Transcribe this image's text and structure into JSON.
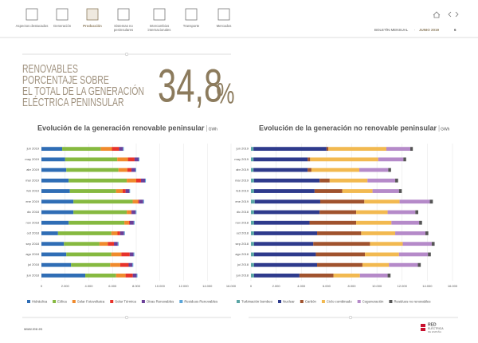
{
  "nav": [
    "Aspectos destacados",
    "Generación",
    "Producción",
    "Sistemas no peninsulares",
    "Intercambios internacionales",
    "Transporte",
    "Mercados"
  ],
  "header": {
    "bulletin": "BOLETÍN MENSUAL",
    "separator": "·",
    "period": "JUNIO 2019",
    "page": "6"
  },
  "headline": {
    "lines": [
      "RENOVABLES",
      "PORCENTAJE SOBRE",
      "EL TOTAL DE LA GENERACIÓN",
      "ELÉCTRICA PENINSULAR"
    ],
    "value": "34,8",
    "unit": "%"
  },
  "footer": {
    "url": "www.ree.es",
    "logo": [
      "RED",
      "ELÉCTRICA",
      "DE ESPAÑA"
    ]
  },
  "chart_data": [
    {
      "type": "bar",
      "orientation": "horizontal",
      "stacked": true,
      "grid": true,
      "title": "Evolución de la generación renovable peninsular",
      "unit": "GWh",
      "categories": [
        "jun 2019",
        "may 2019",
        "abr 2019",
        "mar 2019",
        "feb 2019",
        "ene 2019",
        "dic 2018",
        "nov 2018",
        "oct 2018",
        "sep 2018",
        "ago 2018",
        "jul 2018",
        "jun 2018"
      ],
      "xlim": [
        0,
        16000
      ],
      "xticks": [
        0,
        {
          "value": 2000,
          "label": "2.000"
        },
        {
          "value": 4000,
          "label": "4.000"
        },
        {
          "value": 6000,
          "label": "6.000"
        },
        {
          "value": 8000,
          "label": "8.000"
        },
        {
          "value": 10000,
          "label": "10.000"
        },
        {
          "value": 12000,
          "label": "12.000"
        },
        {
          "value": 14000,
          "label": "14.000"
        },
        {
          "value": 16000,
          "label": "16.000"
        }
      ],
      "series": [
        {
          "name": "Hidráulica",
          "color": "#2f6db5",
          "values": [
            1750,
            2000,
            2100,
            2300,
            2400,
            2700,
            2700,
            2300,
            1400,
            1900,
            2100,
            2500,
            3700
          ]
        },
        {
          "name": "Eólica",
          "color": "#86b940",
          "values": [
            3250,
            4400,
            4400,
            4900,
            3900,
            5000,
            4500,
            4700,
            4500,
            3000,
            3800,
            3300,
            2600
          ]
        },
        {
          "name": "Solar Fotovoltaica",
          "color": "#f08a2c",
          "values": [
            950,
            900,
            750,
            800,
            550,
            450,
            350,
            380,
            520,
            700,
            850,
            850,
            800
          ]
        },
        {
          "name": "Solar Térmica",
          "color": "#e8332a",
          "values": [
            600,
            560,
            350,
            400,
            250,
            100,
            60,
            80,
            220,
            520,
            700,
            710,
            610
          ]
        },
        {
          "name": "Otras Renovables",
          "color": "#6b3f98",
          "values": [
            330,
            340,
            330,
            340,
            320,
            340,
            340,
            330,
            330,
            320,
            320,
            320,
            320
          ]
        },
        {
          "name": "Residuos Renovables",
          "color": "#5aa5d8",
          "values": [
            70,
            70,
            70,
            70,
            60,
            70,
            70,
            70,
            70,
            70,
            70,
            70,
            70
          ]
        }
      ]
    },
    {
      "type": "bar",
      "orientation": "horizontal",
      "stacked": true,
      "grid": true,
      "title": "Evolución de la generación no renovable peninsular",
      "unit": "GWh",
      "categories": [
        "jun 2019",
        "may 2019",
        "abr 2019",
        "mar 2019",
        "feb 2019",
        "ene 2019",
        "dic 2018",
        "nov 2018",
        "oct 2018",
        "sep 2018",
        "ago 2018",
        "jul 2018",
        "jun 2018"
      ],
      "xlim": [
        0,
        16000
      ],
      "xticks": [
        0,
        {
          "value": 2000,
          "label": "2.000"
        },
        {
          "value": 4000,
          "label": "4.000"
        },
        {
          "value": 6000,
          "label": "6.000"
        },
        {
          "value": 8000,
          "label": "8.000"
        },
        {
          "value": 10000,
          "label": "10.000"
        },
        {
          "value": 12000,
          "label": "12.000"
        },
        {
          "value": 14000,
          "label": "14.000"
        },
        {
          "value": 16000,
          "label": "16.000"
        }
      ],
      "series": [
        {
          "name": "Turbinación bombeo",
          "color": "#5aa5a5",
          "values": [
            200,
            200,
            200,
            250,
            250,
            300,
            250,
            250,
            250,
            250,
            250,
            250,
            250
          ]
        },
        {
          "name": "Nuclear",
          "color": "#2e3a8c",
          "values": [
            5800,
            4300,
            4300,
            5200,
            4800,
            5200,
            5200,
            4400,
            5000,
            4700,
            4900,
            5000,
            3600
          ]
        },
        {
          "name": "Carbón",
          "color": "#a0522d",
          "values": [
            150,
            200,
            300,
            800,
            2200,
            3500,
            2900,
            3700,
            3500,
            4500,
            3900,
            3600,
            2700
          ]
        },
        {
          "name": "Ciclo combinado",
          "color": "#f2b950",
          "values": [
            4600,
            5400,
            3800,
            3000,
            2400,
            2800,
            2500,
            2800,
            2700,
            2600,
            2700,
            2100,
            2100
          ]
        },
        {
          "name": "Cogeneración",
          "color": "#b58ac9",
          "values": [
            1900,
            2000,
            2300,
            2200,
            2100,
            2400,
            2200,
            2200,
            2400,
            2300,
            2300,
            2300,
            2200
          ]
        },
        {
          "name": "Residuos no renovables",
          "color": "#555555",
          "values": [
            200,
            220,
            220,
            230,
            220,
            240,
            230,
            230,
            230,
            230,
            230,
            230,
            230
          ]
        }
      ]
    }
  ]
}
